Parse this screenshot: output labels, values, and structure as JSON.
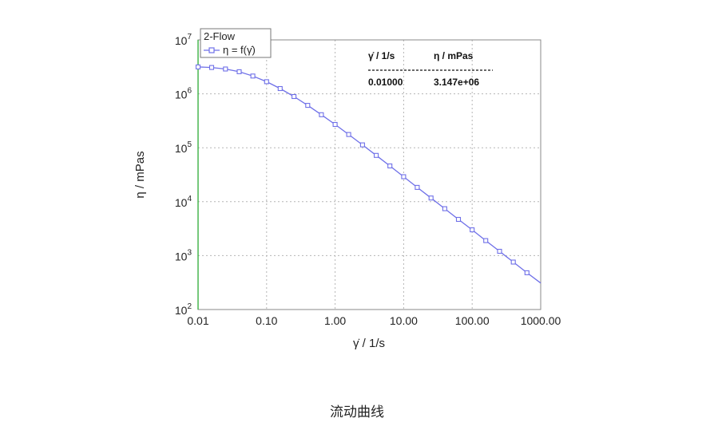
{
  "caption": "流动曲线",
  "chart_data": {
    "type": "line",
    "xlabel": "γ̇ / 1/s",
    "ylabel": "η / mPas",
    "xscale": "log",
    "yscale": "log",
    "xlim": [
      0.01,
      1000
    ],
    "ylim": [
      100,
      10000000
    ],
    "grid": true,
    "x_ticks": [
      {
        "value": 0.01,
        "label": "0.01"
      },
      {
        "value": 0.1,
        "label": "0.10"
      },
      {
        "value": 1,
        "label": "1.00"
      },
      {
        "value": 10,
        "label": "10.00"
      },
      {
        "value": 100,
        "label": "100.00"
      },
      {
        "value": 1000,
        "label": "1000.00"
      }
    ],
    "y_ticks": [
      {
        "value": 100,
        "base": "10",
        "exp": "2"
      },
      {
        "value": 1000,
        "base": "10",
        "exp": "3"
      },
      {
        "value": 10000,
        "base": "10",
        "exp": "4"
      },
      {
        "value": 100000,
        "base": "10",
        "exp": "5"
      },
      {
        "value": 1000000,
        "base": "10",
        "exp": "6"
      },
      {
        "value": 10000000,
        "base": "10",
        "exp": "7"
      }
    ],
    "legend": {
      "placement": "top-left",
      "title": "2-Flow",
      "entries": [
        {
          "label": "η = f(γ̇)",
          "color": "#6f70e8"
        }
      ]
    },
    "annotation_table": {
      "headers": [
        "γ̇ / 1/s",
        "η / mPas"
      ],
      "rows": [
        [
          "0.01000",
          "3.147e+06"
        ]
      ]
    },
    "series": [
      {
        "name": "η = f(γ̇)",
        "color": "#6f70e8",
        "marker": "square",
        "points": [
          [
            0.01,
            3147000
          ],
          [
            0.0158,
            3080000
          ],
          [
            0.0251,
            2880000
          ],
          [
            0.0398,
            2570000
          ],
          [
            0.0631,
            2140000
          ],
          [
            0.1,
            1680000
          ],
          [
            0.158,
            1250000
          ],
          [
            0.251,
            890000
          ],
          [
            0.398,
            610000
          ],
          [
            0.631,
            410000
          ],
          [
            1,
            270000
          ],
          [
            1.58,
            176000
          ],
          [
            2.51,
            113000
          ],
          [
            3.98,
            72000
          ],
          [
            6.31,
            46000
          ],
          [
            10,
            29000
          ],
          [
            15.8,
            18400
          ],
          [
            25.1,
            11700
          ],
          [
            39.8,
            7400
          ],
          [
            63.1,
            4700
          ],
          [
            100,
            3000
          ],
          [
            158,
            1900
          ],
          [
            251,
            1200
          ],
          [
            398,
            760
          ],
          [
            631,
            480
          ],
          [
            1000,
            310
          ]
        ],
        "marker_points": [
          [
            0.01,
            3147000
          ],
          [
            0.0158,
            3080000
          ],
          [
            0.0251,
            2880000
          ],
          [
            0.0398,
            2570000
          ],
          [
            0.0631,
            2140000
          ],
          [
            0.1,
            1680000
          ],
          [
            0.158,
            1250000
          ],
          [
            0.251,
            890000
          ],
          [
            0.398,
            610000
          ],
          [
            0.631,
            410000
          ],
          [
            1,
            270000
          ],
          [
            1.58,
            176000
          ],
          [
            2.51,
            113000
          ],
          [
            3.98,
            72000
          ],
          [
            6.31,
            46000
          ],
          [
            10,
            29000
          ],
          [
            15.8,
            18400
          ],
          [
            25.1,
            11700
          ],
          [
            39.8,
            7400
          ],
          [
            63.1,
            4700
          ],
          [
            100,
            3000
          ],
          [
            158,
            1900
          ],
          [
            251,
            1200
          ],
          [
            398,
            760
          ],
          [
            631,
            480
          ]
        ]
      }
    ]
  }
}
